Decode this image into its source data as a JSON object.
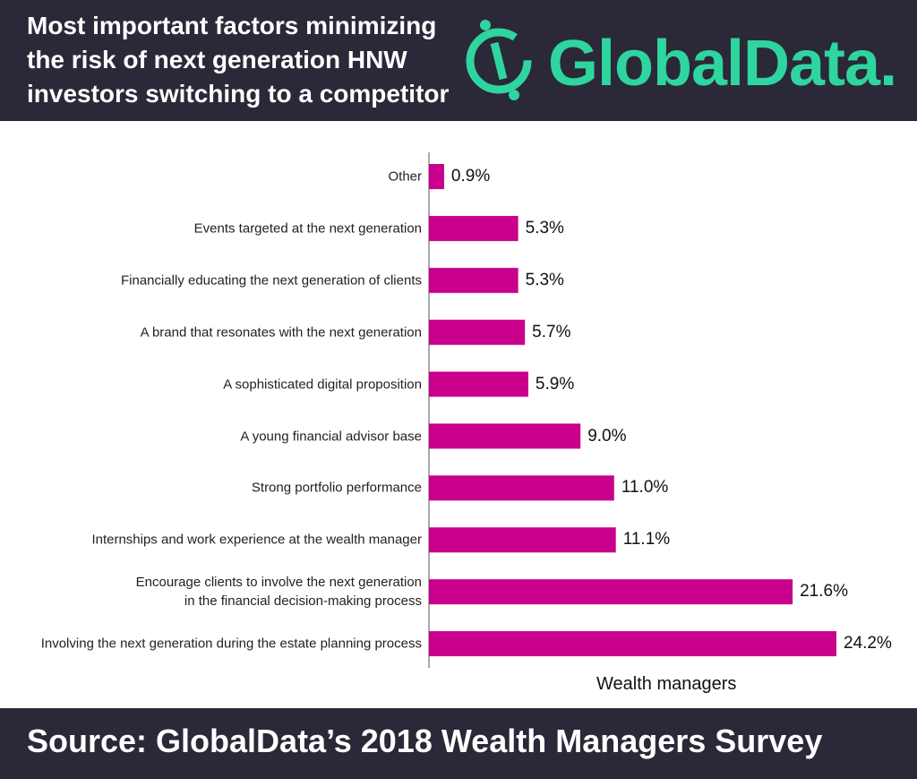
{
  "chart_data": {
    "type": "bar",
    "orientation": "horizontal",
    "title": "Most important factors minimizing the risk of next generation HNW investors switching to a competitor",
    "logo": "GlobalData.",
    "source": "Source: GlobalData’s 2018 Wealth Managers Survey",
    "xlabel": "Wealth managers",
    "color": "#c8008c",
    "categories": [
      "Other",
      "Events targeted at the next generation",
      "Financially educating the next generation of clients",
      "A brand that resonates with the next generation",
      "A sophisticated digital proposition",
      "A young financial advisor base",
      "Strong portfolio performance",
      "Internships and work experience at the wealth manager",
      "Encourage clients to involve the next generation\nin the financial decision-making process",
      "Involving the next generation during the estate planning process"
    ],
    "values": [
      0.9,
      5.3,
      5.3,
      5.7,
      5.9,
      9.0,
      11.0,
      11.1,
      21.6,
      24.2
    ],
    "value_labels": [
      "0.9%",
      "5.3%",
      "5.3%",
      "5.7%",
      "5.9%",
      "9.0%",
      "11.0%",
      "11.1%",
      "21.6%",
      "24.2%"
    ]
  }
}
